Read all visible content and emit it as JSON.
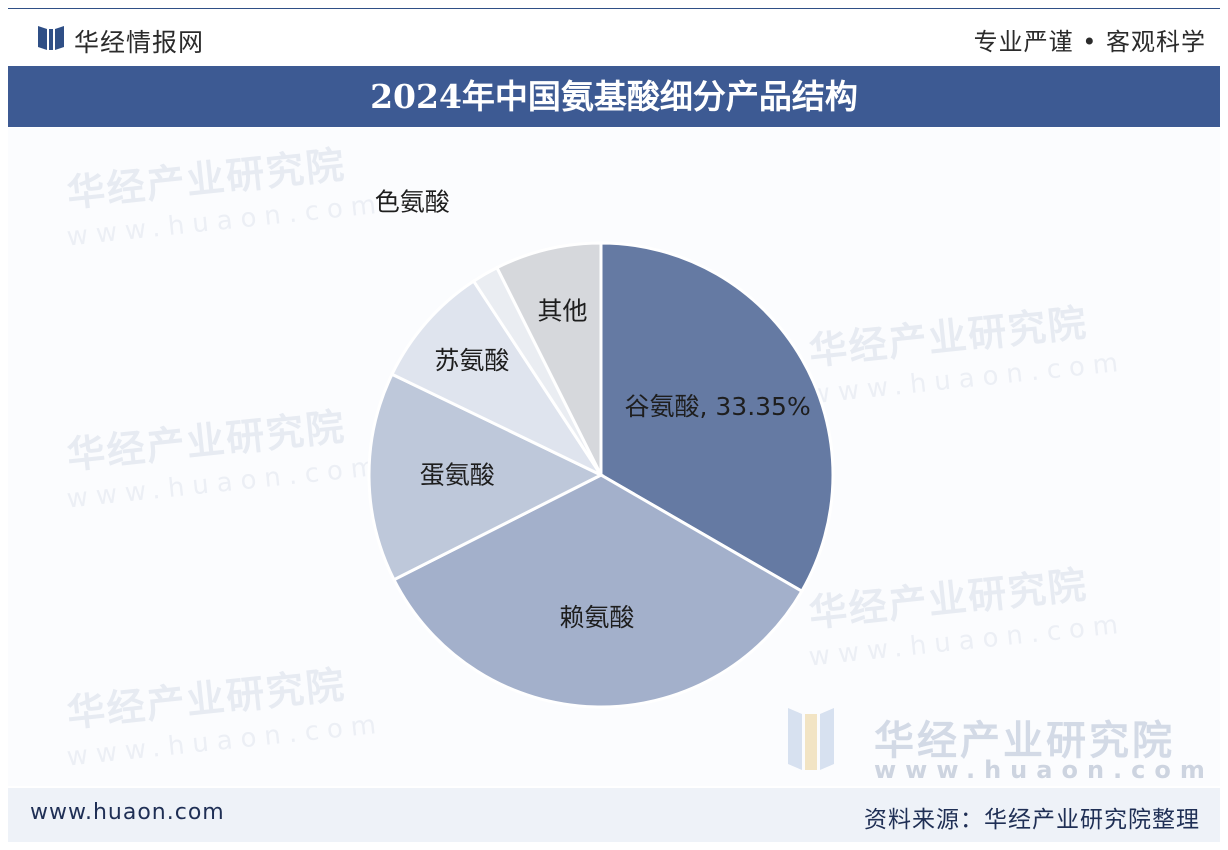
{
  "header": {
    "brand": "华经情报网",
    "slogan": "专业严谨 • 客观科学"
  },
  "title": "2024年中国氨基酸细分产品结构",
  "watermark": {
    "text": "华经产业研究院",
    "url": "www.huaon.com"
  },
  "footer": {
    "url": "www.huaon.com",
    "source": "资料来源：华经产业研究院整理"
  },
  "colors": {
    "title_band": "#3d5a93",
    "background": "#ffffff"
  },
  "chart_data": {
    "type": "pie",
    "slices": [
      {
        "label": "谷氨酸, 33.35%",
        "value": 33.35,
        "color": "#657aa3"
      },
      {
        "label": "赖氨酸",
        "value": 34.2,
        "color": "#a3b0cb"
      },
      {
        "label": "蛋氨酸",
        "value": 14.6,
        "color": "#bec8da"
      },
      {
        "label": "苏氨酸",
        "value": 8.6,
        "color": "#dfe4ee"
      },
      {
        "label": "色氨酸",
        "value": 1.85,
        "color": "#eaedf2"
      },
      {
        "label": "其他",
        "value": 7.4,
        "color": "#d6d8dc"
      }
    ],
    "start_angle_deg": 0,
    "direction": "clockwise"
  }
}
